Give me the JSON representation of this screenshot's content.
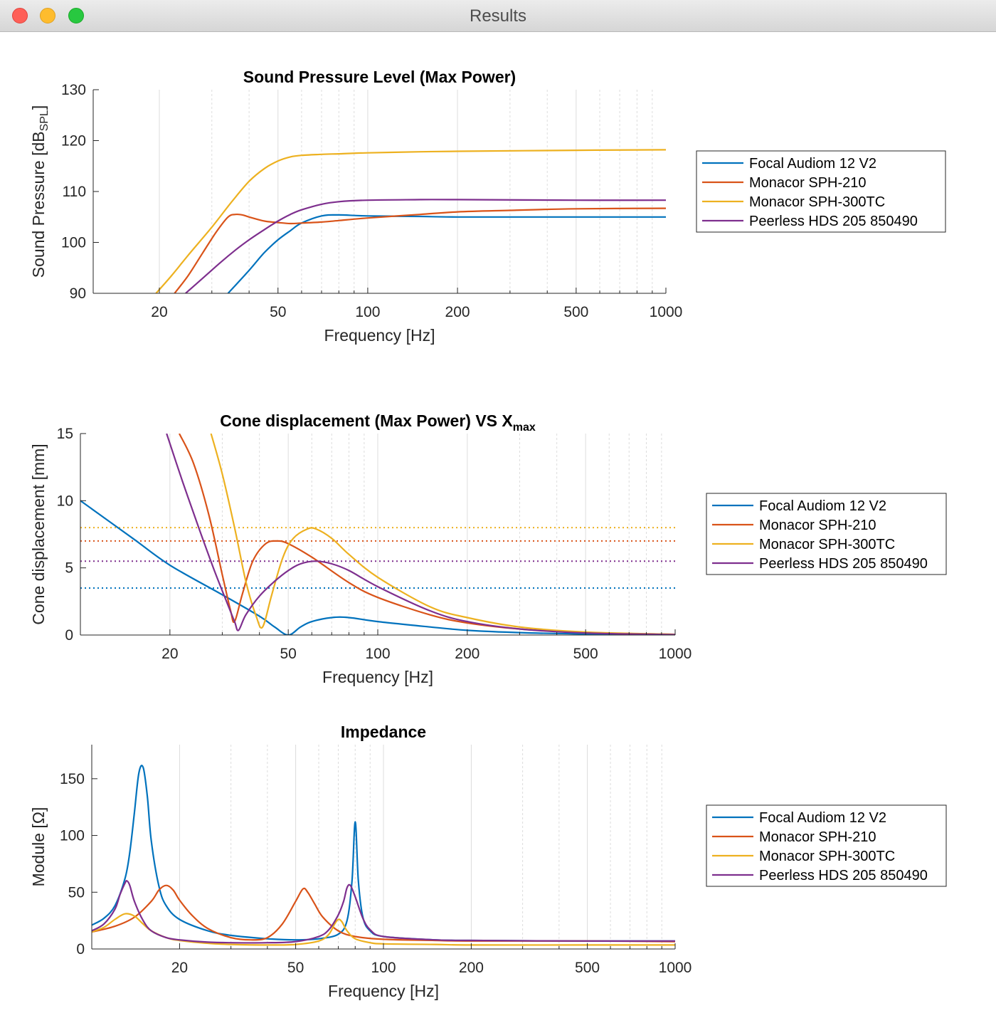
{
  "window": {
    "title": "Results"
  },
  "legend_entries": [
    "Focal Audiom 12 V2",
    "Monacor SPH-210",
    "Monacor SPH-300TC",
    "Peerless HDS 205 850490"
  ],
  "colors": {
    "Focal Audiom 12 V2": "#0072bd",
    "Monacor SPH-210": "#d95319",
    "Monacor SPH-300TC": "#edb120",
    "Peerless HDS 205 850490": "#7e2f8e"
  },
  "chart_data": [
    {
      "type": "line",
      "title": "Sound Pressure Level (Max Power)",
      "xlabel": "Frequency [Hz]",
      "ylabel": "Sound  Pressure  [dB",
      "ylabel_sub": "SPL",
      "ylabel_end": "]",
      "xscale": "log",
      "xlim": [
        12,
        1000
      ],
      "ylim": [
        90,
        130
      ],
      "xticks": [
        20,
        50,
        100,
        200,
        500,
        1000
      ],
      "yticks": [
        90,
        100,
        110,
        120,
        130
      ],
      "grid": true,
      "legend_position": "right",
      "series": [
        {
          "name": "Focal Audiom 12 V2",
          "x": [
            34,
            40,
            45,
            50,
            55,
            60,
            70,
            80,
            100,
            150,
            200,
            500,
            1000
          ],
          "y": [
            90,
            94.5,
            98,
            100.5,
            102.3,
            103.8,
            105.2,
            105.4,
            105.2,
            105.1,
            105.0,
            105.0,
            105.0
          ]
        },
        {
          "name": "Monacor SPH-210",
          "x": [
            22.5,
            25,
            28,
            31,
            34,
            36,
            38,
            40,
            45,
            50,
            55,
            60,
            70,
            80,
            100,
            150,
            200,
            300,
            500,
            1000
          ],
          "y": [
            90,
            93.5,
            98,
            102,
            105,
            105.5,
            105.4,
            105.0,
            104.2,
            103.9,
            103.7,
            103.8,
            104.0,
            104.3,
            104.8,
            105.5,
            106.0,
            106.3,
            106.6,
            106.7
          ]
        },
        {
          "name": "Monacor SPH-300TC",
          "x": [
            19.5,
            22,
            25,
            30,
            35,
            40,
            45,
            50,
            55,
            60,
            70,
            80,
            100,
            150,
            200,
            500,
            1000
          ],
          "y": [
            90,
            93.5,
            97.5,
            103,
            108,
            112,
            114.5,
            116,
            116.8,
            117.1,
            117.3,
            117.4,
            117.6,
            117.8,
            117.9,
            118.1,
            118.2
          ]
        },
        {
          "name": "Peerless HDS 205 850490",
          "x": [
            24.5,
            28,
            32,
            36,
            40,
            45,
            50,
            55,
            60,
            70,
            80,
            100,
            150,
            200,
            500,
            1000
          ],
          "y": [
            90,
            93,
            96,
            98.5,
            100.5,
            102.5,
            104.2,
            105.5,
            106.4,
            107.5,
            108.0,
            108.3,
            108.4,
            108.4,
            108.3,
            108.3
          ]
        }
      ]
    },
    {
      "type": "line",
      "title": "Cone  displacement  (Max  Power)  VS  X",
      "title_sub": "max",
      "xlabel": "Frequency [Hz]",
      "ylabel": "Cone displacement [mm]",
      "xscale": "log",
      "xlim": [
        10,
        1000
      ],
      "ylim": [
        0,
        15
      ],
      "xticks": [
        20,
        50,
        100,
        200,
        500,
        1000
      ],
      "yticks": [
        0,
        5,
        10,
        15
      ],
      "grid": true,
      "legend_position": "right",
      "xmax_lines": [
        {
          "name": "Focal Audiom 12 V2",
          "y": 3.5
        },
        {
          "name": "Monacor SPH-210",
          "y": 7.0
        },
        {
          "name": "Monacor SPH-300TC",
          "y": 8.0
        },
        {
          "name": "Peerless HDS 205 850490",
          "y": 5.5
        }
      ],
      "series": [
        {
          "name": "Focal Audiom 12 V2",
          "x": [
            10,
            15,
            20,
            30,
            40,
            45,
            50,
            55,
            60,
            70,
            80,
            100,
            150,
            200,
            300,
            500,
            1000
          ],
          "y": [
            10.0,
            7.2,
            5.2,
            3.0,
            1.4,
            0.6,
            0.0,
            0.6,
            1.0,
            1.3,
            1.3,
            1.0,
            0.6,
            0.35,
            0.18,
            0.08,
            0.02
          ]
        },
        {
          "name": "Monacor SPH-210",
          "x": [
            21.5,
            24,
            27,
            30,
            32,
            33,
            35,
            38,
            42,
            46,
            50,
            60,
            80,
            100,
            150,
            200,
            300,
            500,
            1000
          ],
          "y": [
            15,
            12.8,
            9.0,
            4.5,
            1.8,
            1.0,
            3.0,
            5.5,
            6.8,
            7.0,
            6.8,
            5.8,
            3.9,
            2.8,
            1.5,
            0.9,
            0.45,
            0.18,
            0.05
          ]
        },
        {
          "name": "Monacor SPH-300TC",
          "x": [
            27.5,
            30,
            33,
            36,
            39,
            41,
            44,
            48,
            52,
            58,
            62,
            70,
            80,
            100,
            150,
            200,
            300,
            500,
            1000
          ],
          "y": [
            15,
            12.0,
            8.0,
            4.0,
            1.4,
            0.6,
            3.0,
            5.8,
            7.2,
            7.9,
            7.9,
            7.2,
            6.0,
            4.3,
            2.1,
            1.3,
            0.6,
            0.22,
            0.05
          ]
        },
        {
          "name": "Peerless HDS 205 850490",
          "x": [
            19.5,
            22,
            25,
            28,
            31,
            33,
            34,
            36,
            40,
            45,
            50,
            55,
            62,
            70,
            80,
            100,
            150,
            200,
            300,
            500,
            1000
          ],
          "y": [
            15,
            11.5,
            8.0,
            5.0,
            2.5,
            1.0,
            0.35,
            1.5,
            2.9,
            4.0,
            4.8,
            5.3,
            5.5,
            5.3,
            4.8,
            3.6,
            1.8,
            1.0,
            0.45,
            0.15,
            0.03
          ]
        }
      ]
    },
    {
      "type": "line",
      "title": "Impedance",
      "xlabel": "Frequency [Hz]",
      "ylabel": "Module  [Ω]",
      "xscale": "log",
      "xlim": [
        10,
        1000
      ],
      "ylim": [
        0,
        180
      ],
      "xticks": [
        20,
        50,
        100,
        200,
        500,
        1000
      ],
      "yticks": [
        0,
        50,
        100,
        150
      ],
      "grid": true,
      "legend_position": "right",
      "series": [
        {
          "name": "Focal Audiom 12 V2",
          "x": [
            10,
            11,
            12,
            13,
            13.5,
            14,
            14.5,
            15,
            15.5,
            16,
            17,
            18,
            20,
            25,
            30,
            40,
            50,
            60,
            70,
            75,
            78,
            80,
            82,
            85,
            90,
            100,
            150,
            200,
            500,
            1000
          ],
          "y": [
            21,
            27,
            38,
            62,
            85,
            120,
            155,
            160,
            135,
            95,
            55,
            38,
            26,
            16,
            12,
            9,
            8,
            9,
            13,
            25,
            60,
            112,
            60,
            28,
            16,
            11,
            8,
            7.5,
            7,
            7
          ]
        },
        {
          "name": "Monacor SPH-210",
          "x": [
            10,
            12,
            14,
            16,
            17,
            18,
            19,
            20,
            22,
            25,
            30,
            35,
            40,
            45,
            50,
            53,
            55,
            58,
            62,
            70,
            80,
            100,
            150,
            200,
            500,
            1000
          ],
          "y": [
            15,
            20,
            28,
            42,
            52,
            56,
            52,
            43,
            30,
            18,
            10,
            8,
            10,
            22,
            42,
            53,
            50,
            40,
            28,
            16,
            11,
            8.5,
            7.5,
            7,
            7,
            6.5
          ]
        },
        {
          "name": "Monacor SPH-300TC",
          "x": [
            10,
            11,
            12,
            13,
            14,
            15,
            16,
            18,
            20,
            25,
            30,
            40,
            50,
            60,
            65,
            68,
            70,
            72,
            75,
            80,
            90,
            100,
            150,
            200,
            500,
            1000
          ],
          "y": [
            15,
            19,
            26,
            31,
            29,
            22,
            16,
            10,
            7.5,
            5,
            4,
            3.5,
            4,
            7,
            13,
            22,
            26,
            24,
            16,
            9,
            5.5,
            4.5,
            4,
            3.5,
            3.5,
            3.5
          ]
        },
        {
          "name": "Peerless HDS 205 850490",
          "x": [
            10,
            11,
            12,
            12.5,
            13,
            13.2,
            13.5,
            14,
            15,
            16,
            18,
            20,
            25,
            30,
            40,
            50,
            60,
            65,
            70,
            73,
            75,
            77,
            80,
            85,
            90,
            100,
            150,
            200,
            500,
            1000
          ],
          "y": [
            16,
            22,
            35,
            48,
            58,
            60,
            56,
            42,
            25,
            16,
            10,
            8,
            6,
            5.5,
            5.5,
            6.5,
            11,
            17,
            30,
            42,
            54,
            56,
            46,
            27,
            17,
            11,
            8,
            7.5,
            7,
            7
          ]
        }
      ]
    }
  ]
}
